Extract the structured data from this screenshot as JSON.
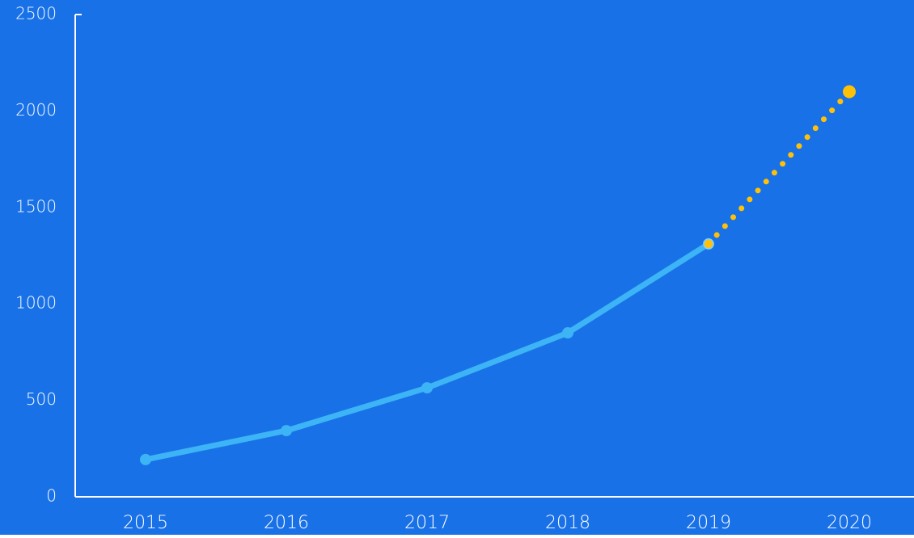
{
  "chart_data": {
    "type": "line",
    "categories": [
      "2015",
      "2016",
      "2017",
      "2018",
      "2019",
      "2020"
    ],
    "series": [
      {
        "color": "#3db4f5",
        "values": [
          193,
          343,
          565,
          850,
          1311,
          null
        ]
      },
      {
        "color": "#ffc107",
        "values": [
          null,
          null,
          null,
          null,
          1311,
          2100
        ],
        "dashed": true
      }
    ],
    "ylim": [
      0,
      2500
    ],
    "yticks": [
      0,
      500,
      1000,
      1500,
      2000,
      2500
    ],
    "grid": false,
    "background": "#1971e8"
  }
}
